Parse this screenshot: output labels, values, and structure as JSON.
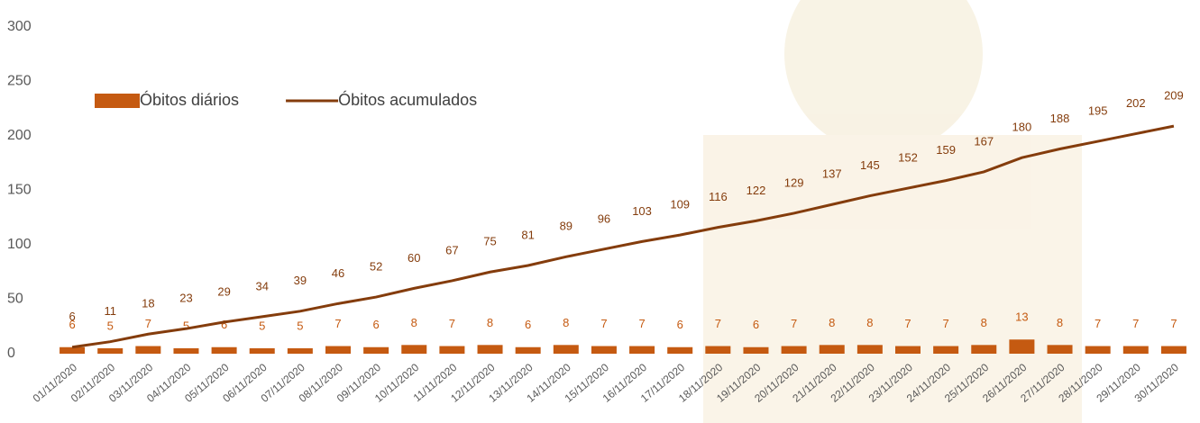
{
  "chart_data": {
    "type": "bar-line",
    "categories": [
      "01/11/2020",
      "02/11/2020",
      "03/11/2020",
      "04/11/2020",
      "05/11/2020",
      "06/11/2020",
      "07/11/2020",
      "08/11/2020",
      "09/11/2020",
      "10/11/2020",
      "11/11/2020",
      "12/11/2020",
      "13/11/2020",
      "14/11/2020",
      "15/11/2020",
      "16/11/2020",
      "17/11/2020",
      "18/11/2020",
      "19/11/2020",
      "20/11/2020",
      "21/11/2020",
      "22/11/2020",
      "23/11/2020",
      "24/11/2020",
      "25/11/2020",
      "26/11/2020",
      "27/11/2020",
      "28/11/2020",
      "29/11/2020",
      "30/11/2020"
    ],
    "series": [
      {
        "name": "Óbitos diários",
        "type": "bar",
        "color": "#c55a11",
        "values": [
          6,
          5,
          7,
          5,
          6,
          5,
          5,
          7,
          6,
          8,
          7,
          8,
          6,
          8,
          7,
          7,
          6,
          7,
          6,
          7,
          8,
          8,
          7,
          7,
          8,
          13,
          8,
          7,
          7,
          7
        ]
      },
      {
        "name": "Óbitos acumulados",
        "type": "line",
        "color": "#843c0c",
        "values": [
          6,
          11,
          18,
          23,
          29,
          34,
          39,
          46,
          52,
          60,
          67,
          75,
          81,
          89,
          96,
          103,
          109,
          116,
          122,
          129,
          137,
          145,
          152,
          159,
          167,
          180,
          188,
          195,
          202,
          209
        ]
      }
    ],
    "ylim": [
      0,
      300
    ],
    "yticks": [
      0,
      50,
      100,
      150,
      200,
      250,
      300
    ],
    "grid": false,
    "legend": "top-left"
  }
}
